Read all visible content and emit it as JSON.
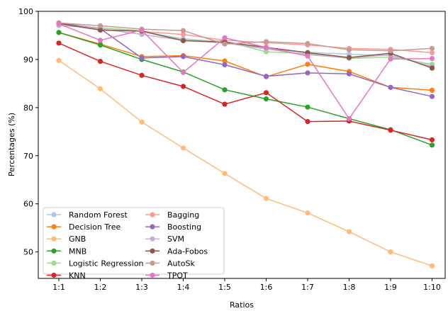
{
  "chart_data": {
    "type": "line",
    "title": "",
    "xlabel": "Ratios",
    "ylabel": "Percentages (%)",
    "categories": [
      "1:1",
      "1:2",
      "1:3",
      "1:4",
      "1:5",
      "1:6",
      "1:7",
      "1:8",
      "1:9",
      "1:10"
    ],
    "ylim": [
      44.5,
      100
    ],
    "yticks": [
      50,
      60,
      70,
      80,
      90,
      100
    ],
    "grid": false,
    "legend_placement": "lower-left",
    "legend_columns": 2,
    "series": [
      {
        "name": "Random Forest",
        "color": "#aec7e8",
        "values": [
          97.0,
          96.6,
          95.8,
          94.3,
          93.6,
          92.2,
          91.5,
          91.1,
          90.8,
          88.6
        ]
      },
      {
        "name": "Decision Tree",
        "color": "#ff7f0e",
        "values": [
          95.6,
          93.2,
          90.6,
          90.8,
          89.7,
          86.4,
          89.0,
          87.5,
          84.2,
          83.6
        ]
      },
      {
        "name": "GNB",
        "color": "#ffbb78",
        "values": [
          89.8,
          83.9,
          77.0,
          71.6,
          66.3,
          61.1,
          58.1,
          54.2,
          50.0,
          47.1
        ]
      },
      {
        "name": "MNB",
        "color": "#2ca02c",
        "values": [
          95.6,
          93.0,
          90.0,
          87.4,
          83.7,
          81.8,
          80.1,
          77.7,
          75.4,
          72.2
        ]
      },
      {
        "name": "Logistic Regression",
        "color": "#98df8a",
        "values": [
          97.2,
          96.6,
          96.0,
          94.0,
          93.8,
          91.6,
          91.2,
          90.2,
          90.5,
          89.0
        ]
      },
      {
        "name": "KNN",
        "color": "#d62728",
        "values": [
          93.4,
          89.6,
          86.7,
          84.4,
          80.7,
          83.1,
          77.1,
          77.2,
          75.3,
          73.3
        ]
      },
      {
        "name": "Bagging",
        "color": "#ff9896",
        "values": [
          97.3,
          96.2,
          95.8,
          95.2,
          94.0,
          93.5,
          93.0,
          92.3,
          92.1,
          91.4
        ]
      },
      {
        "name": "Boosting",
        "color": "#9467bd",
        "values": [
          97.6,
          96.4,
          90.3,
          90.6,
          88.9,
          86.5,
          87.2,
          87.0,
          84.2,
          82.3
        ]
      },
      {
        "name": "SVM",
        "color": "#c5b0d5",
        "values": [
          97.4,
          96.4,
          95.2,
          94.0,
          93.4,
          92.2,
          91.0,
          90.3,
          91.0,
          88.5
        ]
      },
      {
        "name": "Ada-Fobos",
        "color": "#8c564b",
        "values": [
          97.5,
          96.1,
          95.9,
          93.9,
          93.6,
          92.5,
          91.4,
          90.4,
          91.3,
          88.2
        ]
      },
      {
        "name": "AutoSk",
        "color": "#c49c94",
        "values": [
          97.6,
          97.0,
          96.3,
          96.0,
          93.2,
          93.7,
          93.3,
          92.0,
          91.8,
          92.3
        ]
      },
      {
        "name": "TPOT",
        "color": "#e377c2",
        "values": [
          97.4,
          94.0,
          96.1,
          87.3,
          94.5,
          92.5,
          90.7,
          77.7,
          90.1,
          90.2
        ]
      }
    ]
  }
}
